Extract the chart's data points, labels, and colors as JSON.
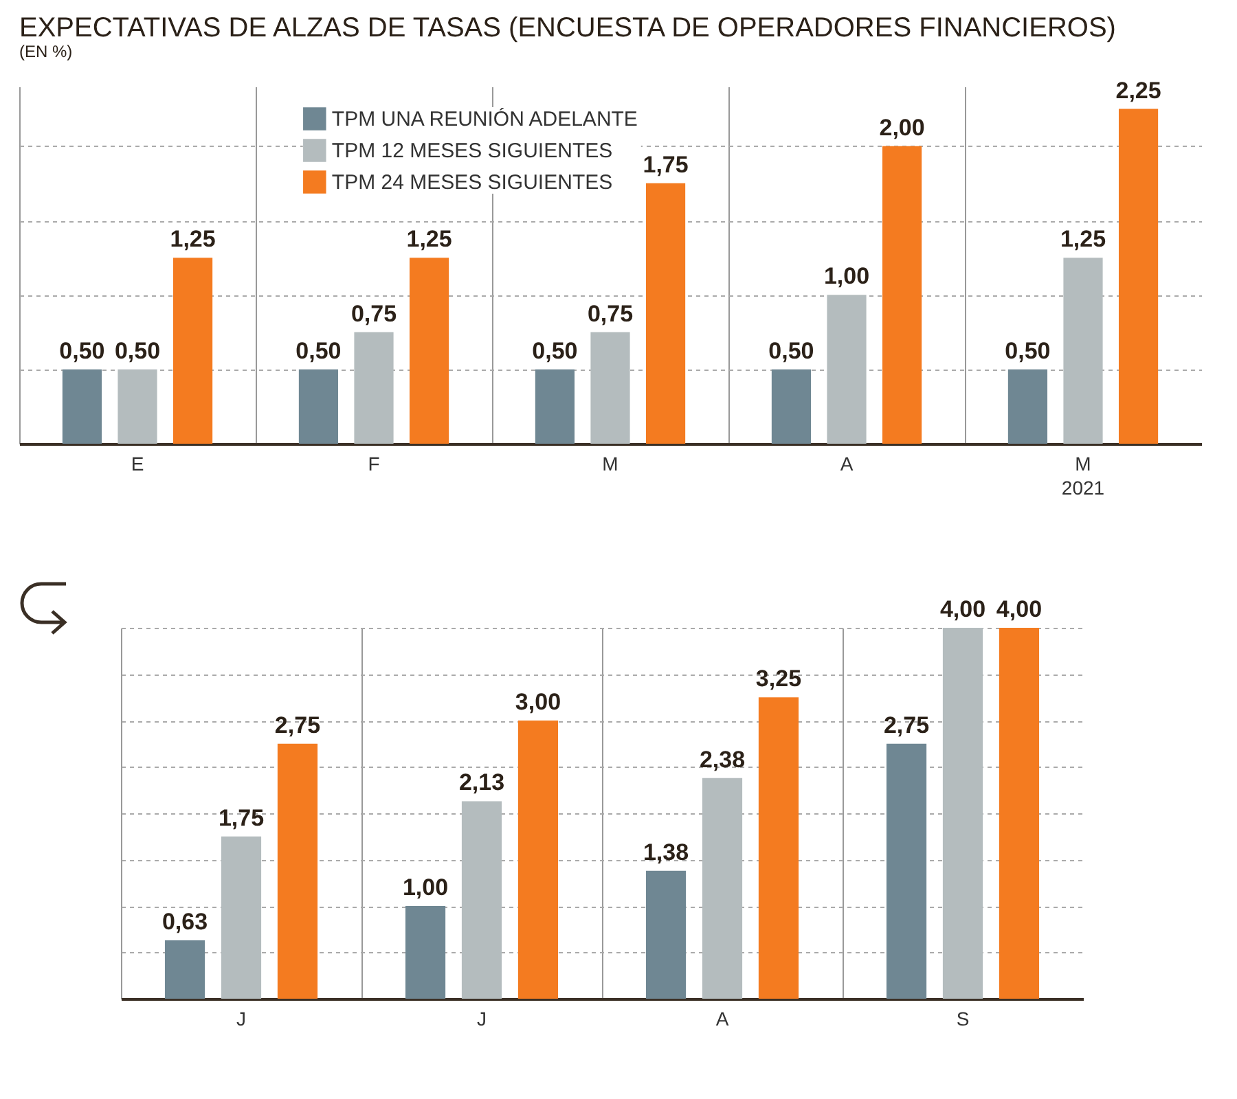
{
  "chart_data": [
    {
      "type": "bar",
      "title": "EXPECTATIVAS DE ALZAS DE TASAS (ENCUESTA DE OPERADORES FINANCIEROS)",
      "subtitle": "(EN %)",
      "categories": [
        "E",
        "F",
        "M",
        "A",
        "M"
      ],
      "series": [
        {
          "name": "TPM UNA REUNIÓN ADELANTE",
          "color": "#6f8793",
          "values": [
            0.5,
            0.5,
            0.5,
            0.5,
            0.5
          ],
          "value_labels": [
            "0,50",
            "0,50",
            "0,50",
            "0,50",
            "0,50"
          ]
        },
        {
          "name": "TPM 12 MESES SIGUIENTES",
          "color": "#b4bcbe",
          "values": [
            0.5,
            0.75,
            0.75,
            1.0,
            1.25
          ],
          "value_labels": [
            "0,50",
            "0,75",
            "0,75",
            "1,00",
            "1,25"
          ]
        },
        {
          "name": "TPM 24 MESES SIGUIENTES",
          "color": "#f47b20",
          "values": [
            1.25,
            1.25,
            1.75,
            2.0,
            2.25
          ],
          "value_labels": [
            "1,25",
            "1,25",
            "1,75",
            "2,00",
            "2,25"
          ]
        }
      ],
      "annotations": [
        "2021"
      ],
      "tick_labels": "x",
      "grid": true,
      "legend": "top"
    },
    {
      "type": "bar",
      "categories": [
        "J",
        "J",
        "A",
        "S"
      ],
      "series": [
        {
          "color": "#6f8793",
          "values": [
            0.63,
            1.0,
            1.38,
            2.75
          ],
          "value_labels": [
            "0,63",
            "1,00",
            "1,38",
            "2,75"
          ]
        },
        {
          "color": "#b4bcbe",
          "values": [
            1.75,
            2.13,
            2.38,
            4.0
          ],
          "value_labels": [
            "1,75",
            "2,13",
            "2,38",
            "4,00"
          ]
        },
        {
          "color": "#f47b20",
          "values": [
            2.75,
            3.0,
            3.25,
            4.0
          ],
          "value_labels": [
            "2,75",
            "3,00",
            "3,25",
            "4,00"
          ]
        }
      ],
      "tick_labels": "x",
      "grid": true
    }
  ]
}
